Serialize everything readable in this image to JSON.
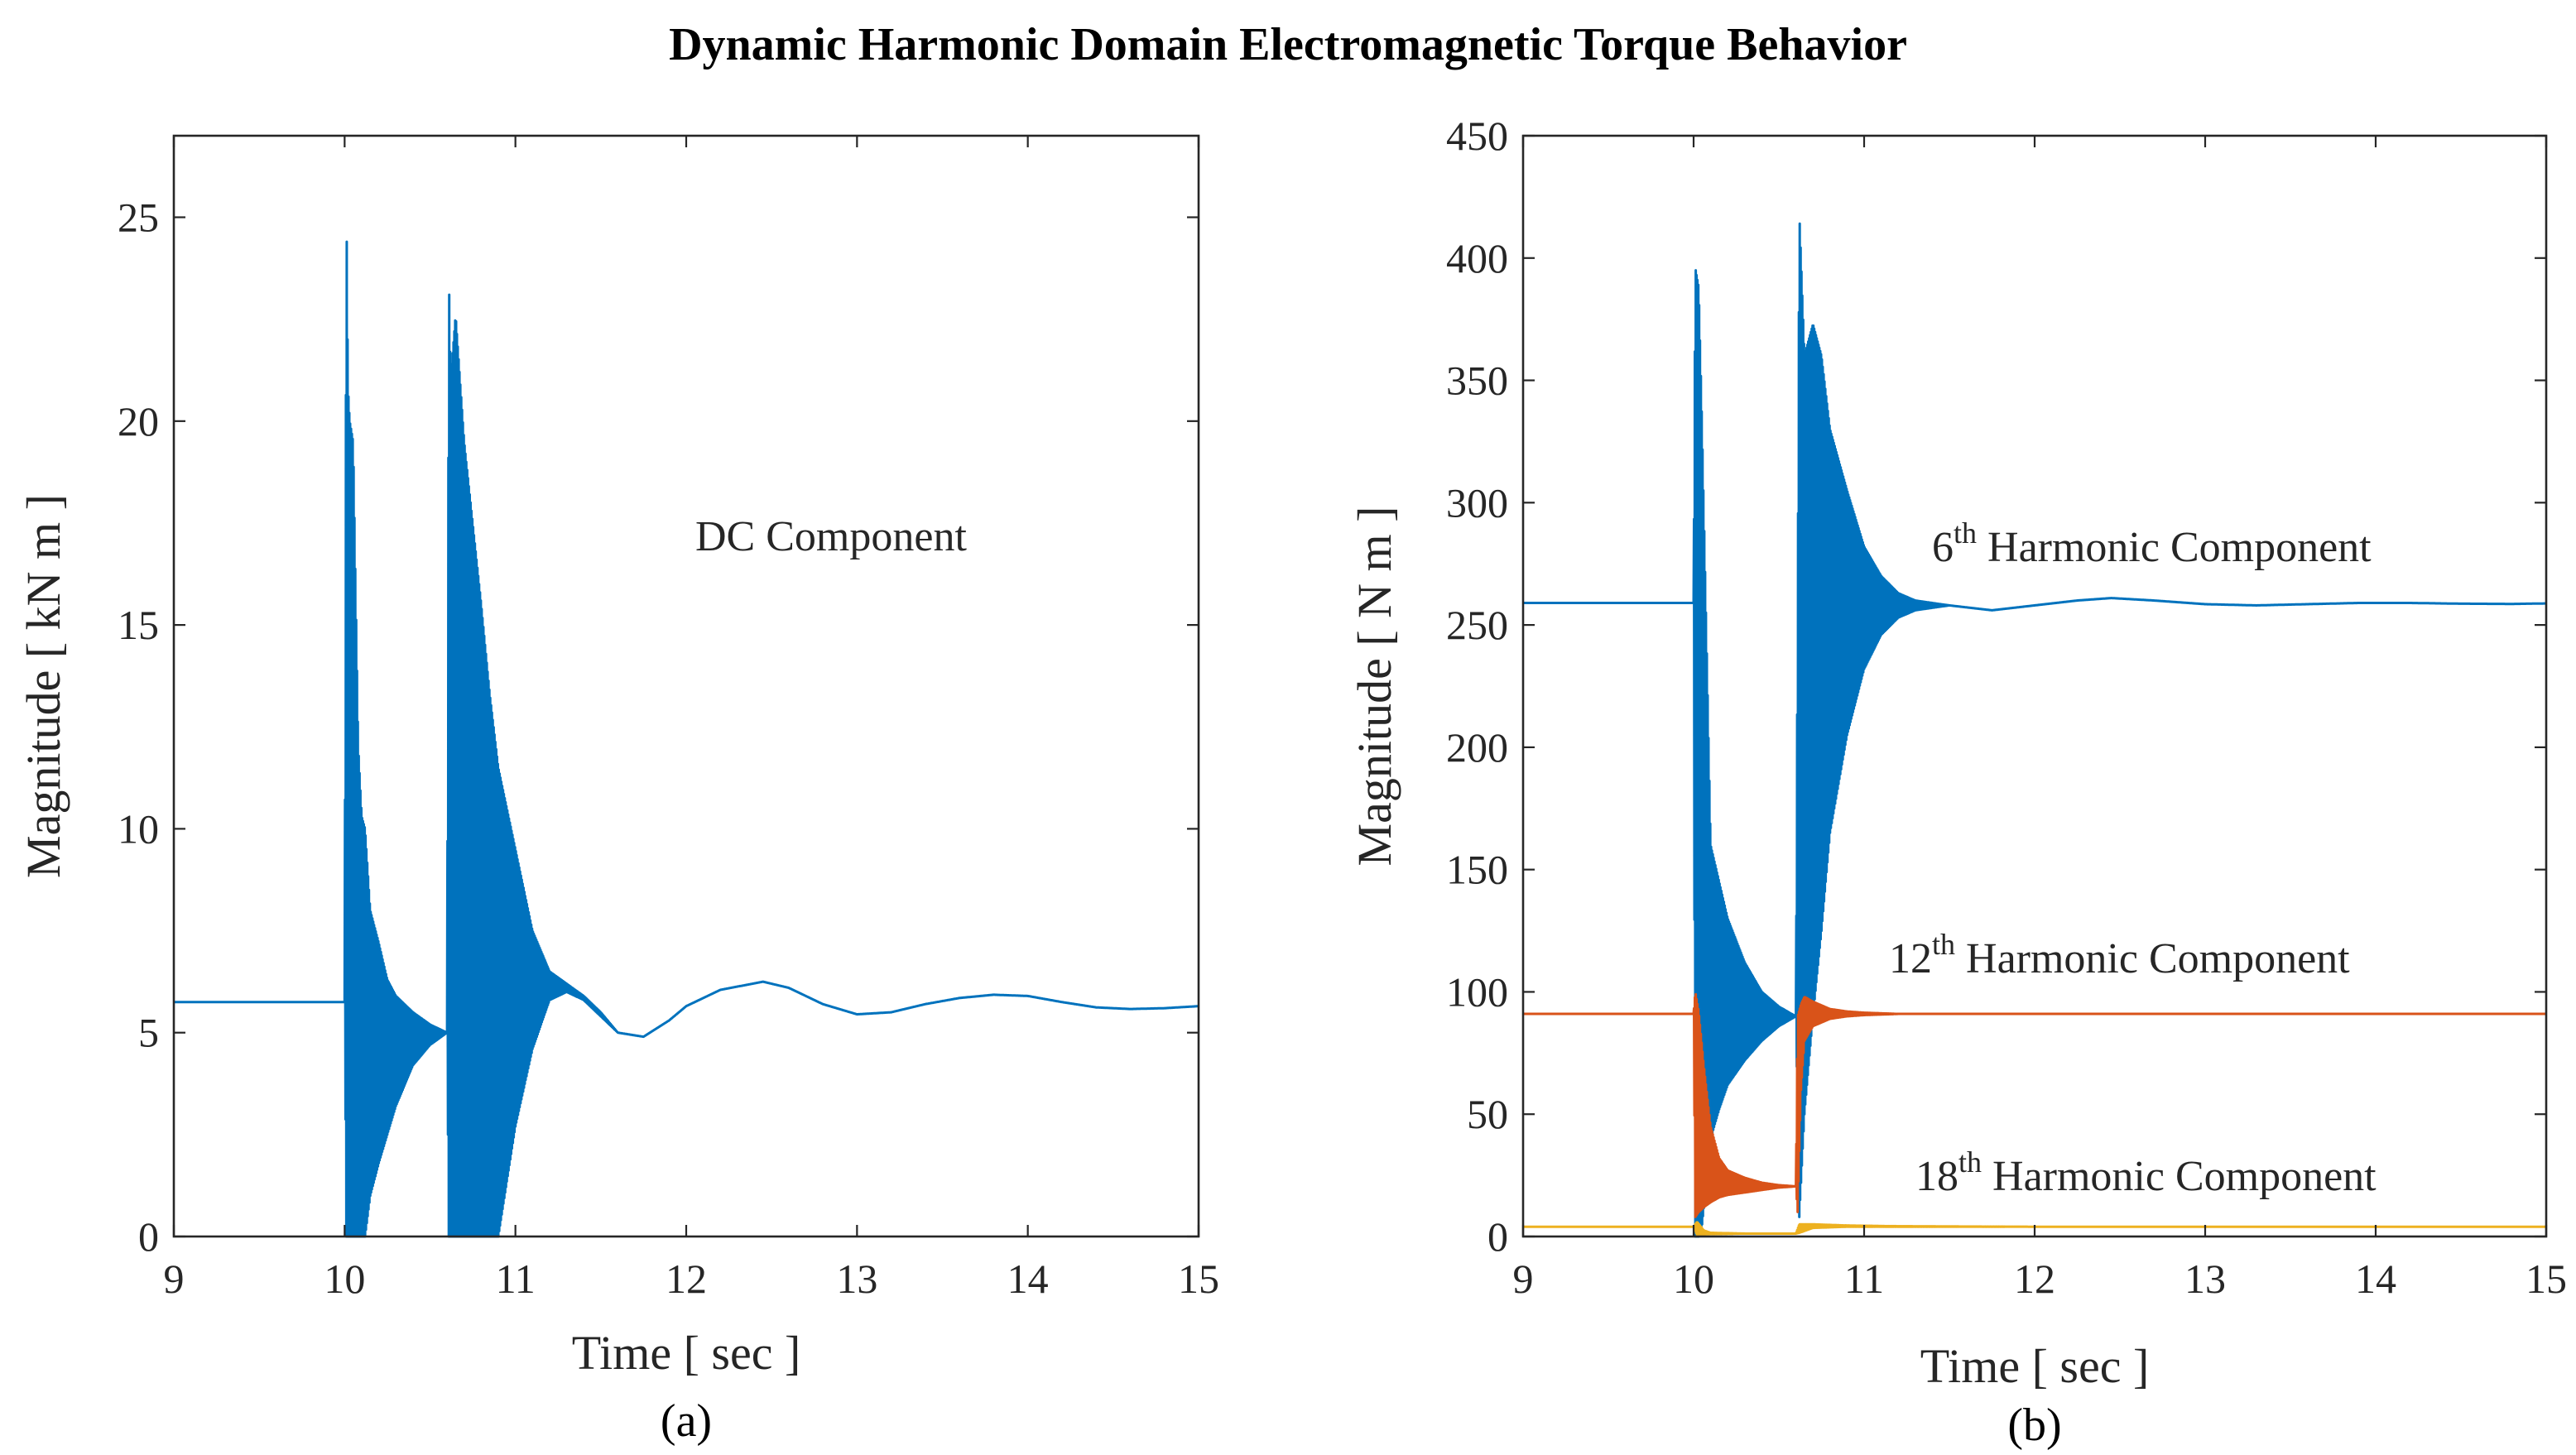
{
  "figure": {
    "title": "Dynamic Harmonic Domain Electromagnetic Torque Behavior"
  },
  "colors": {
    "blue": "#0072BD",
    "orange": "#D95319",
    "yellow": "#EDB120",
    "axis": "#262626"
  },
  "chart_data": [
    {
      "type": "line",
      "caption": "(a)",
      "title": "",
      "xlabel": "Time  [ sec ]",
      "ylabel": "Magnitude  [ kN m ]",
      "xlim": [
        9,
        15
      ],
      "ylim": [
        0,
        27
      ],
      "xticks": [
        9,
        10,
        11,
        12,
        13,
        14,
        15
      ],
      "yticks": [
        0,
        5,
        10,
        15,
        20,
        25
      ],
      "annotations": [
        {
          "text": "DC Component",
          "sup": "",
          "rest": ""
        }
      ],
      "series": [
        {
          "name": "DC Component",
          "color": "#0072BD",
          "x": [
            9.0,
            10.0,
            10.01,
            10.02,
            10.03,
            10.05,
            10.08,
            10.1,
            10.12,
            10.15,
            10.2,
            10.25,
            10.3,
            10.4,
            10.5,
            10.6,
            10.61,
            10.62,
            10.65,
            10.7,
            10.75,
            10.8,
            10.85,
            10.9,
            11.0,
            11.1,
            11.2,
            11.3,
            11.4,
            11.5,
            11.6,
            11.75,
            11.9,
            12.0,
            12.2,
            12.45,
            12.6,
            12.8,
            13.0,
            13.2,
            13.4,
            13.6,
            13.8,
            14.0,
            14.2,
            14.4,
            14.6,
            14.8,
            15.0
          ],
          "envelope_upper": [
            5.75,
            5.75,
            25.6,
            20.8,
            20.0,
            19.5,
            12.0,
            10.3,
            10.0,
            8.0,
            7.2,
            6.3,
            5.9,
            5.5,
            5.2,
            5.0,
            23.8,
            21.0,
            22.6,
            19.5,
            17.5,
            15.5,
            13.3,
            11.5,
            9.5,
            7.5,
            6.5,
            6.2,
            5.9,
            5.5,
            5.0,
            4.9,
            5.3,
            5.65,
            6.05,
            6.25,
            6.1,
            5.7,
            5.45,
            5.5,
            5.7,
            5.85,
            5.93,
            5.9,
            5.75,
            5.62,
            5.58,
            5.6,
            5.65
          ],
          "envelope_lower": [
            5.75,
            5.75,
            0.0,
            0.0,
            0.0,
            0.0,
            0.0,
            0.0,
            0.0,
            1.0,
            1.8,
            2.5,
            3.2,
            4.2,
            4.7,
            5.0,
            0.0,
            0.0,
            0.0,
            0.0,
            0.0,
            0.0,
            0.0,
            0.0,
            2.7,
            4.6,
            5.8,
            6.0,
            5.8,
            5.4,
            5.0,
            4.9,
            5.3,
            5.65,
            6.05,
            6.25,
            6.1,
            5.7,
            5.45,
            5.5,
            5.7,
            5.85,
            5.93,
            5.9,
            5.75,
            5.62,
            5.58,
            5.6,
            5.65
          ]
        }
      ]
    },
    {
      "type": "line",
      "caption": "(b)",
      "title": "",
      "xlabel": "Time  [ sec ]",
      "ylabel": "Magnitude  [ N m ]",
      "xlim": [
        9,
        15
      ],
      "ylim": [
        0,
        450
      ],
      "xticks": [
        9,
        10,
        11,
        12,
        13,
        14,
        15
      ],
      "yticks": [
        0,
        50,
        100,
        150,
        200,
        250,
        300,
        350,
        400,
        450
      ],
      "annotations": [
        {
          "text": "6",
          "sup": "th",
          "rest": " Harmonic Component"
        },
        {
          "text": "12",
          "sup": "th",
          "rest": " Harmonic Component"
        },
        {
          "text": "18",
          "sup": "th",
          "rest": " Harmonic Component"
        }
      ],
      "series": [
        {
          "name": "6th Harmonic Component",
          "color": "#0072BD",
          "x": [
            9.0,
            10.0,
            10.01,
            10.03,
            10.05,
            10.08,
            10.1,
            10.15,
            10.2,
            10.3,
            10.4,
            10.5,
            10.6,
            10.62,
            10.65,
            10.7,
            10.75,
            10.8,
            10.9,
            11.0,
            11.1,
            11.2,
            11.3,
            11.5,
            11.75,
            12.0,
            12.25,
            12.45,
            12.7,
            13.0,
            13.3,
            13.6,
            13.9,
            14.2,
            14.5,
            14.8,
            15.0
          ],
          "envelope_upper": [
            259,
            259,
            396,
            388,
            330,
            230,
            160,
            145,
            130,
            112,
            100,
            94,
            90,
            419,
            360,
            373,
            360,
            330,
            305,
            282,
            270,
            263,
            260,
            258,
            256,
            258,
            260,
            261,
            260,
            258.5,
            258,
            258.5,
            259,
            259,
            258.7,
            258.6,
            258.8
          ],
          "envelope_lower": [
            259,
            259,
            0,
            0,
            5,
            25,
            40,
            52,
            62,
            72,
            80,
            86,
            90,
            8,
            50,
            90,
            125,
            165,
            205,
            232,
            246,
            253,
            256,
            258,
            256,
            258,
            260,
            261,
            260,
            258.5,
            258,
            258.5,
            259,
            259,
            258.7,
            258.6,
            258.8
          ]
        },
        {
          "name": "12th Harmonic Component",
          "color": "#D95319",
          "x": [
            9.0,
            10.0,
            10.01,
            10.03,
            10.06,
            10.1,
            10.15,
            10.2,
            10.3,
            10.4,
            10.5,
            10.6,
            10.61,
            10.63,
            10.65,
            10.7,
            10.8,
            10.9,
            11.0,
            11.2,
            11.5,
            12.0,
            13.0,
            14.0,
            15.0
          ],
          "envelope_upper": [
            91,
            91,
            100,
            92,
            70,
            45,
            32,
            27,
            24,
            22,
            21,
            20.5,
            90,
            95,
            98,
            96,
            93,
            92,
            91.5,
            91,
            91,
            91,
            91,
            91,
            91
          ],
          "envelope_lower": [
            91,
            91,
            8,
            10,
            12,
            14,
            16,
            17,
            18,
            19,
            20,
            20.5,
            10,
            60,
            80,
            86,
            89,
            90,
            90.5,
            91,
            91,
            91,
            91,
            91,
            91
          ]
        },
        {
          "name": "18th Harmonic Component",
          "color": "#EDB120",
          "x": [
            9.0,
            10.0,
            10.02,
            10.06,
            10.1,
            10.3,
            10.6,
            10.62,
            10.7,
            10.9,
            11.2,
            12.0,
            13.0,
            14.0,
            15.0
          ],
          "envelope_upper": [
            4,
            4,
            6,
            2.5,
            1.5,
            1.2,
            1.2,
            5,
            5,
            4.5,
            4.2,
            4,
            4,
            4,
            4
          ],
          "envelope_lower": [
            4,
            4,
            0.5,
            0.8,
            1.0,
            1.2,
            1.2,
            1.5,
            3.5,
            4.0,
            4.0,
            4,
            4,
            4,
            4
          ]
        }
      ]
    }
  ]
}
